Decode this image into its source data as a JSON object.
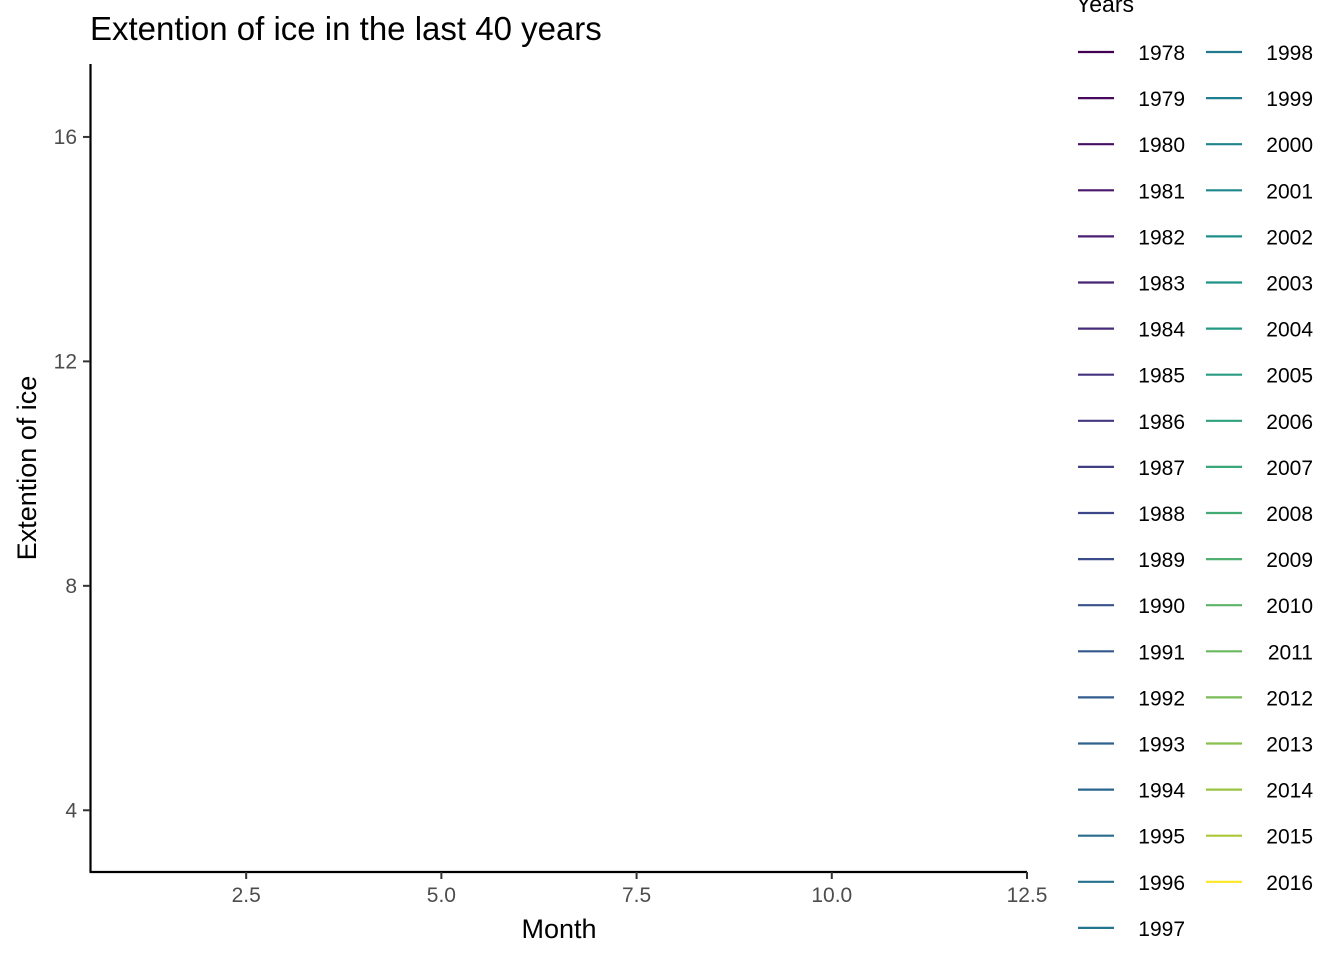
{
  "chart_data": {
    "type": "line",
    "title": "Extention of ice in the last 40 years",
    "xlabel": "Month",
    "ylabel": "Extention of ice",
    "xlim": [
      0.5,
      12.5
    ],
    "ylim": [
      2.9,
      17.3
    ],
    "x_ticks": [
      2.5,
      5.0,
      7.5,
      10.0,
      12.5
    ],
    "x_tick_labels": [
      "2.5",
      "5.0",
      "7.5",
      "10.0",
      "12.5"
    ],
    "y_ticks": [
      4,
      8,
      12,
      16
    ],
    "y_tick_labels": [
      "4",
      "8",
      "12",
      "16"
    ],
    "grid": false,
    "legend": {
      "title": "Years",
      "placement": "right",
      "columns": 2
    },
    "series": [
      {
        "name": "1978",
        "color": "#440154",
        "x": [],
        "values": []
      },
      {
        "name": "1979",
        "color": "#450a5c",
        "x": [],
        "values": []
      },
      {
        "name": "1980",
        "color": "#471163",
        "x": [],
        "values": []
      },
      {
        "name": "1981",
        "color": "#481769",
        "x": [],
        "values": []
      },
      {
        "name": "1982",
        "color": "#481e70",
        "x": [],
        "values": []
      },
      {
        "name": "1983",
        "color": "#472575",
        "x": [],
        "values": []
      },
      {
        "name": "1984",
        "color": "#462c7b",
        "x": [],
        "values": []
      },
      {
        "name": "1985",
        "color": "#45327f",
        "x": [],
        "values": []
      },
      {
        "name": "1986",
        "color": "#433983",
        "x": [],
        "values": []
      },
      {
        "name": "1987",
        "color": "#403f86",
        "x": [],
        "values": []
      },
      {
        "name": "1988",
        "color": "#3d4688",
        "x": [],
        "values": []
      },
      {
        "name": "1989",
        "color": "#3a4b8a",
        "x": [],
        "values": []
      },
      {
        "name": "1990",
        "color": "#37518b",
        "x": [],
        "values": []
      },
      {
        "name": "1991",
        "color": "#34578c",
        "x": [],
        "values": []
      },
      {
        "name": "1992",
        "color": "#315c8d",
        "x": [],
        "values": []
      },
      {
        "name": "1993",
        "color": "#2e618e",
        "x": [],
        "values": []
      },
      {
        "name": "1994",
        "color": "#2b668e",
        "x": [],
        "values": []
      },
      {
        "name": "1995",
        "color": "#296b8e",
        "x": [],
        "values": []
      },
      {
        "name": "1996",
        "color": "#26718e",
        "x": [],
        "values": []
      },
      {
        "name": "1997",
        "color": "#24758e",
        "x": [],
        "values": []
      },
      {
        "name": "1998",
        "color": "#227a8e",
        "x": [],
        "values": []
      },
      {
        "name": "1999",
        "color": "#207f8e",
        "x": [],
        "values": []
      },
      {
        "name": "2000",
        "color": "#1f848d",
        "x": [],
        "values": []
      },
      {
        "name": "2001",
        "color": "#1e898c",
        "x": [],
        "values": []
      },
      {
        "name": "2002",
        "color": "#1e8e8a",
        "x": [],
        "values": []
      },
      {
        "name": "2003",
        "color": "#1f9388",
        "x": [],
        "values": []
      },
      {
        "name": "2004",
        "color": "#229885",
        "x": [],
        "values": []
      },
      {
        "name": "2005",
        "color": "#279c82",
        "x": [],
        "values": []
      },
      {
        "name": "2006",
        "color": "#2ea17e",
        "x": [],
        "values": []
      },
      {
        "name": "2007",
        "color": "#37a679",
        "x": [],
        "values": []
      },
      {
        "name": "2008",
        "color": "#42ab74",
        "x": [],
        "values": []
      },
      {
        "name": "2009",
        "color": "#4eaf6e",
        "x": [],
        "values": []
      },
      {
        "name": "2010",
        "color": "#5bb467",
        "x": [],
        "values": []
      },
      {
        "name": "2011",
        "color": "#69b95f",
        "x": [],
        "values": []
      },
      {
        "name": "2012",
        "color": "#79bc56",
        "x": [],
        "values": []
      },
      {
        "name": "2013",
        "color": "#89c14c",
        "x": [],
        "values": []
      },
      {
        "name": "2014",
        "color": "#9ac442",
        "x": [],
        "values": []
      },
      {
        "name": "2015",
        "color": "#acc737",
        "x": [],
        "values": []
      },
      {
        "name": "2016",
        "color": "#fde725",
        "x": [],
        "values": []
      }
    ]
  }
}
